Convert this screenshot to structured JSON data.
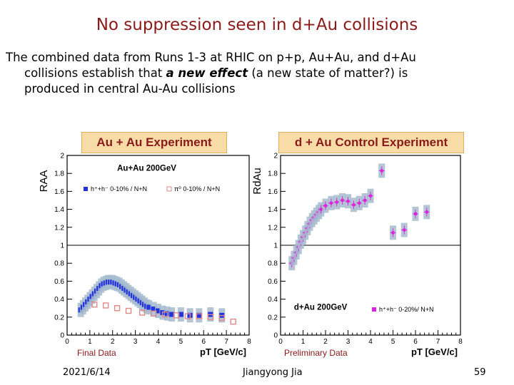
{
  "slide": {
    "title": "No suppression seen in d+Au collisions",
    "text_line1": "The combined data from Runs 1-3 at RHIC on p+p, Au+Au, and d+Au",
    "text_line2_a": "collisions establish that ",
    "text_line2_emph": "a new effect",
    "text_line2_b": " (a new state of matter?)  is",
    "text_line3": "produced in central Au-Au collisions",
    "label_left": "Au + Au Experiment",
    "label_right": "d + Au Control Experiment",
    "final_data": "Final Data",
    "preliminary_data": "Preliminary Data",
    "footer_date": "2021/6/14",
    "footer_author": "Jiangyong Jia",
    "footer_page": "59"
  },
  "chart_data": [
    {
      "type": "scatter",
      "title": "Au+Au 200GeV",
      "xlabel": "pT [GeV/c]",
      "ylabel": "RAA",
      "xlim": [
        0,
        8
      ],
      "ylim": [
        0,
        2
      ],
      "xticks": [
        "0",
        "1",
        "2",
        "3",
        "4",
        "5",
        "6",
        "7",
        "8"
      ],
      "yticks": [
        "0",
        "0.2",
        "0.4",
        "0.6",
        "0.8",
        "1",
        "1.2",
        "1.4",
        "1.6",
        "1.8",
        "2"
      ],
      "series": [
        {
          "name": "h⁺+h⁻ 0-10% / N+N",
          "color": "#2233dd",
          "x": [
            0.6,
            0.7,
            0.8,
            0.9,
            1.0,
            1.1,
            1.2,
            1.3,
            1.4,
            1.5,
            1.6,
            1.7,
            1.8,
            1.9,
            2.0,
            2.1,
            2.2,
            2.3,
            2.4,
            2.5,
            2.6,
            2.7,
            2.8,
            2.9,
            3.0,
            3.1,
            3.2,
            3.3,
            3.4,
            3.5,
            3.6,
            3.8,
            4.0,
            4.2,
            4.4,
            4.6,
            5.0,
            5.4,
            5.8,
            6.3,
            6.8
          ],
          "y": [
            0.28,
            0.31,
            0.34,
            0.37,
            0.4,
            0.43,
            0.46,
            0.49,
            0.52,
            0.55,
            0.57,
            0.58,
            0.59,
            0.59,
            0.59,
            0.58,
            0.57,
            0.56,
            0.54,
            0.52,
            0.5,
            0.48,
            0.46,
            0.44,
            0.42,
            0.4,
            0.38,
            0.36,
            0.34,
            0.32,
            0.31,
            0.29,
            0.27,
            0.25,
            0.24,
            0.23,
            0.23,
            0.22,
            0.22,
            0.23,
            0.22
          ]
        },
        {
          "name": "π⁰ 0-10% / N+N",
          "color": "#e08a8a",
          "x": [
            1.2,
            1.7,
            2.2,
            2.7,
            3.3,
            3.8,
            4.3,
            4.8,
            5.3,
            5.8,
            6.3,
            6.8,
            7.3
          ],
          "y": [
            0.34,
            0.33,
            0.3,
            0.27,
            0.25,
            0.24,
            0.23,
            0.22,
            0.21,
            0.21,
            0.2,
            0.19,
            0.15
          ]
        }
      ],
      "legend": [
        "h⁺+h⁻ 0-10% / N+N",
        "π⁰ 0-10% / N+N"
      ],
      "legend_position": "top-left",
      "reference_line": 1
    },
    {
      "type": "scatter",
      "title": "d+Au 200GeV",
      "xlabel": "pT [GeV/c]",
      "ylabel": "RdAu",
      "xlim": [
        0,
        8
      ],
      "ylim": [
        0,
        2
      ],
      "xticks": [
        "0",
        "1",
        "2",
        "3",
        "4",
        "5",
        "6",
        "7",
        "8"
      ],
      "yticks": [
        "0",
        "0.2",
        "0.4",
        "0.6",
        "0.8",
        "1",
        "1.2",
        "1.4",
        "1.6",
        "1.8",
        "2"
      ],
      "series": [
        {
          "name": "h⁺+h⁻ 0-20%/ N+N",
          "color": "#dd22dd",
          "x": [
            0.5,
            0.6,
            0.7,
            0.8,
            0.9,
            1.0,
            1.1,
            1.2,
            1.3,
            1.4,
            1.5,
            1.6,
            1.7,
            1.8,
            2.0,
            2.25,
            2.5,
            2.75,
            3.0,
            3.25,
            3.5,
            3.75,
            4.0,
            4.5,
            5.0,
            5.5,
            6.0,
            6.5
          ],
          "y": [
            0.8,
            0.86,
            0.92,
            0.98,
            1.04,
            1.09,
            1.14,
            1.19,
            1.24,
            1.28,
            1.31,
            1.34,
            1.37,
            1.4,
            1.44,
            1.47,
            1.48,
            1.5,
            1.49,
            1.45,
            1.47,
            1.5,
            1.55,
            1.83,
            1.14,
            1.17,
            1.35,
            1.37
          ]
        }
      ],
      "legend": [
        "h⁺+h⁻ 0-20%/ N+N"
      ],
      "legend_position": "bottom-right",
      "reference_line": 1
    }
  ]
}
